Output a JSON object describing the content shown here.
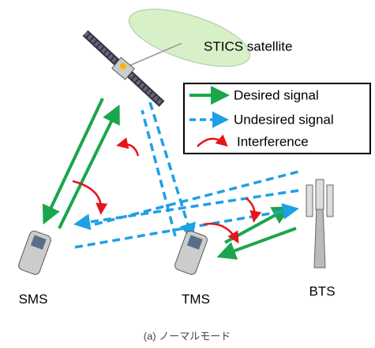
{
  "satellite": {
    "label": "STICS satellite"
  },
  "legend": {
    "items": [
      "Desired signal",
      "Undesired signal",
      "Interference"
    ]
  },
  "nodes": [
    {
      "label": "SMS"
    },
    {
      "label": "TMS"
    },
    {
      "label": "BTS"
    }
  ],
  "caption": "(a) ノーマルモード"
}
